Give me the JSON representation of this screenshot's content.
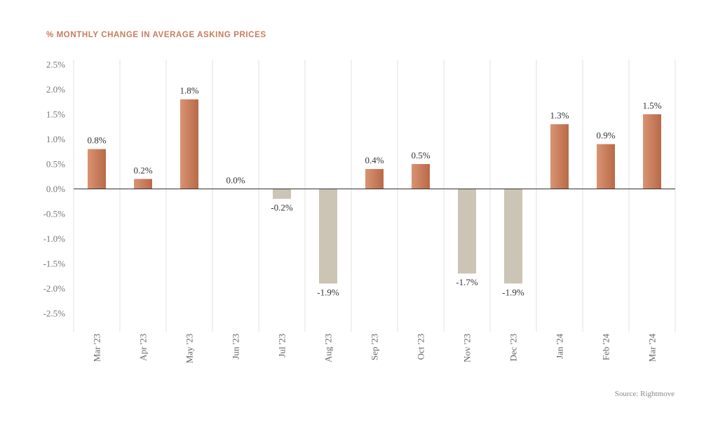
{
  "title": "% MONTHLY CHANGE IN AVERAGE ASKING PRICES",
  "source": "Source: Rightmove",
  "colors": {
    "positive_dark": "#b86a48",
    "positive_light": "#d99373",
    "negative": "#ccc4b4",
    "gridline": "#e2e2e2",
    "axis": "#333333"
  },
  "chart_data": {
    "type": "bar",
    "categories": [
      "Mar '23",
      "Apr '23",
      "May '23",
      "Jun '23",
      "Jul '23",
      "Aug '23",
      "Sep '23",
      "Oct '23",
      "Nov '23",
      "Dec '23",
      "Jan '24",
      "Feb '24",
      "Mar '24"
    ],
    "values": [
      0.8,
      0.2,
      1.8,
      0.0,
      -0.2,
      -1.9,
      0.4,
      0.5,
      -1.7,
      -1.9,
      1.3,
      0.9,
      1.5
    ],
    "data_labels": [
      "0.8%",
      "0.2%",
      "1.8%",
      "0.0%",
      "-0.2%",
      "-1.9%",
      "0.4%",
      "0.5%",
      "-1.7%",
      "-1.9%",
      "1.3%",
      "0.9%",
      "1.5%"
    ],
    "title": "% MONTHLY CHANGE IN AVERAGE ASKING PRICES",
    "xlabel": "",
    "ylabel": "",
    "ylim": [
      -2.5,
      2.5
    ],
    "yticks": [
      2.5,
      2.0,
      1.5,
      1.0,
      0.5,
      0.0,
      -0.5,
      -1.0,
      -1.5,
      -2.0,
      -2.5
    ],
    "ytick_labels": [
      "2.5%",
      "2.0%",
      "1.5%",
      "1.0%",
      "0.5%",
      "0.0%",
      "-0.5%",
      "-1.0%",
      "-1.5%",
      "-2.0%",
      "-2.5%"
    ],
    "grid": "vertical",
    "legend": "none"
  }
}
